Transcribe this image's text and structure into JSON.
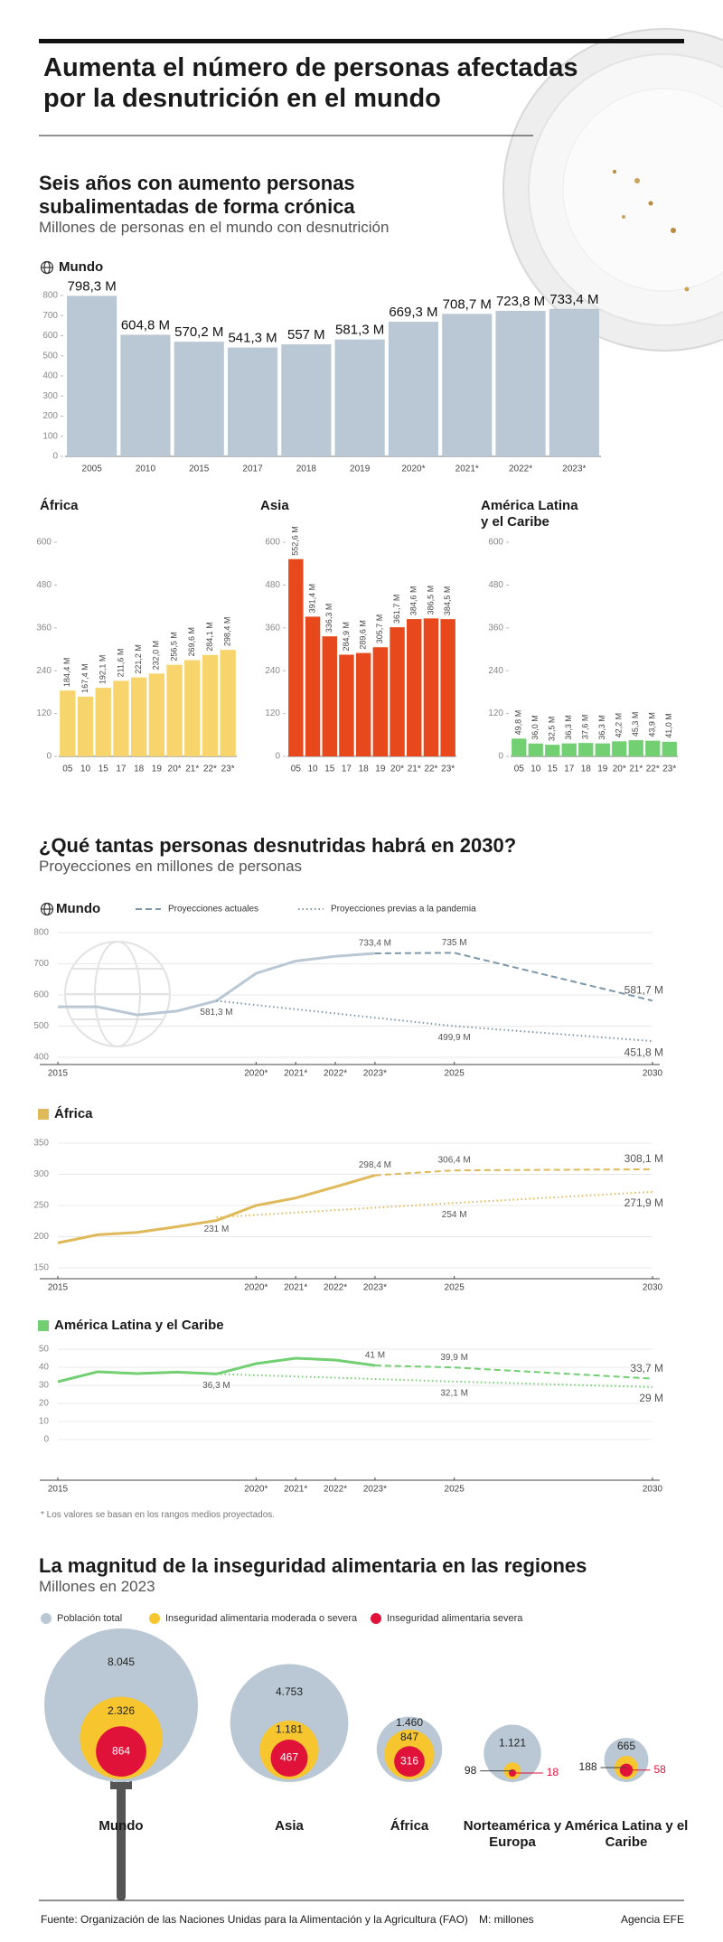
{
  "title": "Aumenta el número de personas afectadas por la desnutrición en el mundo",
  "sections": [
    {
      "title": "Seis años con aumento personas subalimentadas de forma crónica",
      "subtitle": "Millones de personas en el mundo con desnutrición"
    },
    {
      "title": "¿Qué tantas personas desnutridas habrá en 2030?",
      "subtitle": "Proyecciones en millones de personas"
    },
    {
      "title": "La magnitud de la inseguridad alimentaria en las regiones",
      "subtitle": "Millones en 2023"
    }
  ],
  "chart_data": [
    {
      "type": "bar",
      "title": "Mundo",
      "color": "#b9c8d4",
      "categories": [
        "2005",
        "2010",
        "2015",
        "2017",
        "2018",
        "2019",
        "2020*",
        "2021*",
        "2022*",
        "2023*"
      ],
      "values": [
        798.3,
        604.8,
        570.2,
        541.3,
        557,
        581.3,
        669.3,
        708.7,
        723.8,
        733.4
      ],
      "value_labels": [
        "798,3 M",
        "604,8 M",
        "570,2 M",
        "541,3 M",
        "557 M",
        "581,3 M",
        "669,3 M",
        "708,7 M",
        "723,8 M",
        "733,4 M"
      ],
      "ylim": [
        0,
        800
      ],
      "yticks": [
        0,
        100,
        200,
        300,
        400,
        500,
        600,
        700,
        800
      ]
    },
    {
      "type": "bar",
      "title": "África",
      "color": "#f8d46c",
      "categories": [
        "05",
        "10",
        "15",
        "17",
        "18",
        "19",
        "20*",
        "21*",
        "22*",
        "23*"
      ],
      "values": [
        184.4,
        167.4,
        192.1,
        211.6,
        221.2,
        232.0,
        256.5,
        269.6,
        284.1,
        298.4
      ],
      "value_labels": [
        "184,4 M",
        "167,4 M",
        "192,1 M",
        "211,6 M",
        "221,2 M",
        "232,0 M",
        "256,5 M",
        "269,6 M",
        "284,1 M",
        "298,4 M"
      ],
      "ylim": [
        0,
        600
      ],
      "yticks": [
        0,
        120,
        240,
        360,
        480,
        600
      ]
    },
    {
      "type": "bar",
      "title": "Asia",
      "color": "#e8491c",
      "categories": [
        "05",
        "10",
        "15",
        "17",
        "18",
        "19",
        "20*",
        "21*",
        "22*",
        "23*"
      ],
      "values": [
        552.6,
        391.4,
        336.3,
        284.9,
        289.6,
        305.7,
        361.7,
        384.6,
        386.5,
        384.5
      ],
      "value_labels": [
        "552,6 M",
        "391,4 M",
        "336,3 M",
        "284,9 M",
        "289,6 M",
        "305,7 M",
        "361,7 M",
        "384,6 M",
        "386,5 M",
        "384,5 M"
      ],
      "ylim": [
        0,
        600
      ],
      "yticks": [
        0,
        120,
        240,
        360,
        480,
        600
      ]
    },
    {
      "type": "bar",
      "title": "América Latina y el Caribe",
      "color": "#72cf72",
      "categories": [
        "05",
        "10",
        "15",
        "17",
        "18",
        "19",
        "20*",
        "21*",
        "22*",
        "23*"
      ],
      "values": [
        49.8,
        36.0,
        32.5,
        36.3,
        37.6,
        36.3,
        42.2,
        45.3,
        43.9,
        41.0
      ],
      "value_labels": [
        "49,8 M",
        "36,0 M",
        "32,5 M",
        "36,3 M",
        "37,6 M",
        "36,3 M",
        "42,2 M",
        "45,3 M",
        "43,9 M",
        "41,0 M"
      ],
      "ylim": [
        0,
        600
      ],
      "yticks": [
        0,
        120,
        240,
        360,
        480,
        600
      ]
    },
    {
      "type": "line",
      "title": "Mundo",
      "grid": true,
      "xlim": [
        2015,
        2030
      ],
      "xticks": [
        2015,
        {
          "value": 2020,
          "label": "2020*"
        },
        {
          "value": 2021,
          "label": "2021*"
        },
        {
          "value": 2022,
          "label": "2022*"
        },
        {
          "value": 2023,
          "label": "2023*"
        },
        2025,
        2030
      ],
      "ylim": [
        400,
        800
      ],
      "yticks": [
        400,
        500,
        600,
        700,
        800
      ],
      "series": [
        {
          "style": "solid",
          "color": "#b9c8d4",
          "x": [
            2015,
            2016,
            2017,
            2018,
            2019,
            2020,
            2021,
            2022,
            2023
          ],
          "values": [
            562,
            562,
            536,
            548,
            581.3,
            669.3,
            708.7,
            723.8,
            733.4
          ],
          "value_labels": [
            null,
            null,
            null,
            null,
            null,
            null,
            null,
            null,
            "733,4 M"
          ]
        },
        {
          "name": "Proyecciones actuales",
          "style": "dashed",
          "color": "#7d98aa",
          "x": [
            2023,
            2025,
            2030
          ],
          "values": [
            733.4,
            735,
            581.7
          ],
          "value_labels": [
            null,
            "735 M",
            "581,7 M"
          ]
        },
        {
          "name": "Proyecciones previas a la pandemia",
          "style": "dotted",
          "color": "#7d98aa",
          "x": [
            2019,
            2025,
            2030
          ],
          "values": [
            581.3,
            499.9,
            451.8
          ],
          "value_labels": [
            "581,3 M",
            "499,9 M",
            "451,8 M"
          ]
        }
      ]
    },
    {
      "type": "line",
      "title": "África",
      "color": "#e0b95a",
      "grid": true,
      "xlim": [
        2015,
        2030
      ],
      "xticks": [
        2015,
        {
          "value": 2020,
          "label": "2020*"
        },
        {
          "value": 2021,
          "label": "2021*"
        },
        {
          "value": 2022,
          "label": "2022*"
        },
        {
          "value": 2023,
          "label": "2023*"
        },
        2025,
        2030
      ],
      "ylim": [
        150,
        350
      ],
      "yticks": [
        150,
        200,
        250,
        300,
        350
      ],
      "series": [
        {
          "style": "solid",
          "color": "#e0b95a",
          "x": [
            2015,
            2016,
            2017,
            2018,
            2019,
            2020,
            2021,
            2022,
            2023
          ],
          "values": [
            190,
            203,
            207,
            216,
            226,
            250,
            262,
            280,
            298.4
          ],
          "value_labels": [
            null,
            null,
            null,
            null,
            null,
            null,
            null,
            null,
            "298,4 M"
          ]
        },
        {
          "style": "dashed",
          "color": "#e0b95a",
          "x": [
            2023,
            2025,
            2030
          ],
          "values": [
            298.4,
            306.4,
            308.1
          ],
          "value_labels": [
            null,
            "306,4 M",
            "308,1 M"
          ]
        },
        {
          "style": "dotted",
          "color": "#e0b95a",
          "x": [
            2019,
            2025,
            2030
          ],
          "values": [
            231,
            254,
            271.9
          ],
          "value_labels": [
            "231 M",
            "254 M",
            "271,9 M"
          ]
        }
      ]
    },
    {
      "type": "line",
      "title": "América Latina y el Caribe",
      "color": "#72cf72",
      "grid": true,
      "xlim": [
        2015,
        2030
      ],
      "xticks": [
        2015,
        {
          "value": 2020,
          "label": "2020*"
        },
        {
          "value": 2021,
          "label": "2021*"
        },
        {
          "value": 2022,
          "label": "2022*"
        },
        {
          "value": 2023,
          "label": "2023*"
        },
        2025,
        2030
      ],
      "ylim": [
        0,
        50
      ],
      "yticks": [
        0,
        10,
        20,
        30,
        40,
        50
      ],
      "series": [
        {
          "style": "solid",
          "color": "#72cf72",
          "x": [
            2015,
            2016,
            2017,
            2018,
            2019,
            2020,
            2021,
            2022,
            2023
          ],
          "values": [
            32,
            37.5,
            36.5,
            37.3,
            36.3,
            42,
            45,
            44,
            41
          ],
          "value_labels": [
            null,
            null,
            null,
            null,
            null,
            null,
            null,
            null,
            "41 M"
          ]
        },
        {
          "style": "dashed",
          "color": "#72cf72",
          "x": [
            2023,
            2025,
            2030
          ],
          "values": [
            41,
            39.9,
            33.7
          ],
          "value_labels": [
            null,
            "39,9 M",
            "33,7 M"
          ]
        },
        {
          "style": "dotted",
          "color": "#72cf72",
          "x": [
            2019,
            2025,
            2030
          ],
          "values": [
            36.3,
            32.1,
            29
          ],
          "value_labels": [
            "36,3 M",
            "32,1 M",
            "29 M"
          ]
        }
      ]
    },
    {
      "type": "bubble",
      "categories": [
        "Mundo",
        "Asia",
        "África",
        "Norteamérica y Europa",
        "América Latina y el Caribe"
      ],
      "series": [
        {
          "name": "Población total",
          "color": "#b9c8d4",
          "values": [
            8045,
            4753,
            1460,
            1121,
            665
          ],
          "value_labels": [
            "8.045",
            "4.753",
            "1.460",
            "1.121",
            "665"
          ]
        },
        {
          "name": "Inseguridad alimentaria moderada o severa",
          "color": "#f7c52e",
          "values": [
            2326,
            1181,
            847,
            98,
            188
          ],
          "value_labels": [
            "2.326",
            "1.181",
            "847",
            "98",
            "188"
          ]
        },
        {
          "name": "Inseguridad alimentaria severa",
          "color": "#e0123a",
          "values": [
            864,
            467,
            316,
            18,
            58
          ],
          "value_labels": [
            "864",
            "467",
            "316",
            "18",
            "58"
          ]
        }
      ]
    }
  ],
  "footnote": "* Los valores se basan en los rangos medios proyectados.",
  "footer": {
    "source": "Fuente: Organización de las Naciones Unidas para la Alimentación y la Agricultura (FAO)",
    "units": "M: millones",
    "credit": "Agencia EFE"
  }
}
